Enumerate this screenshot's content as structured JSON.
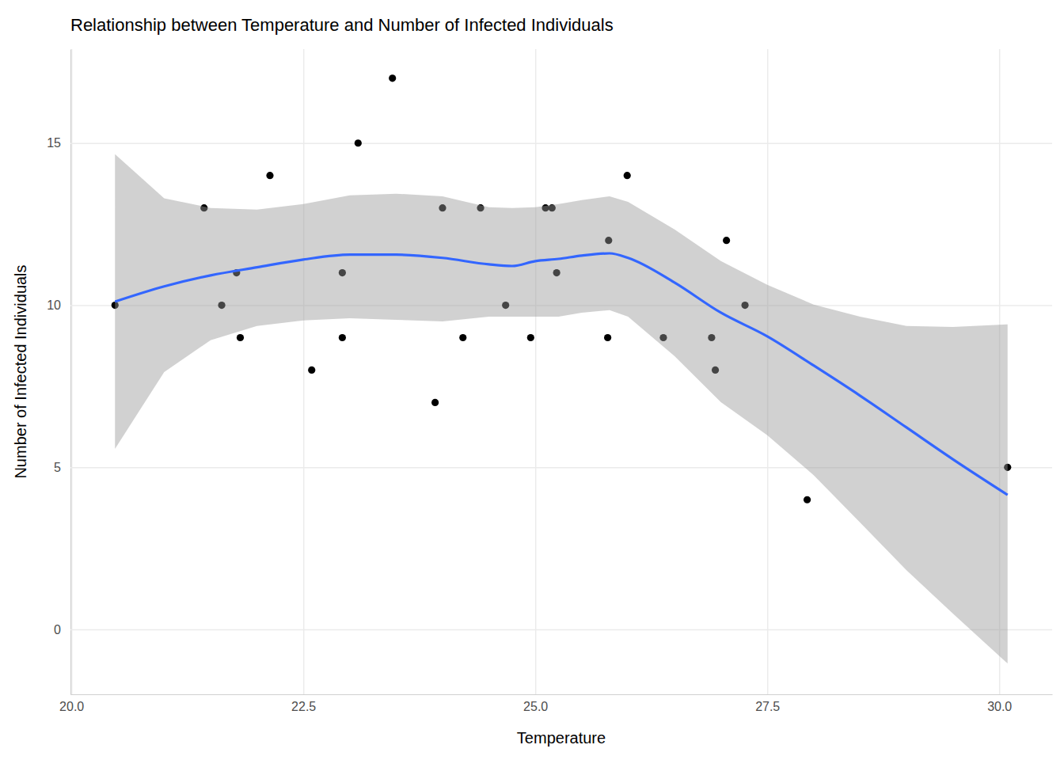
{
  "chart_data": {
    "type": "scatter",
    "title": "Relationship between Temperature and Number of Infected Individuals",
    "x_label": "Temperature",
    "y_label": "Number of Infected Individuals",
    "xlim": [
      19.99,
      30.57
    ],
    "ylim": [
      -2.0,
      17.9
    ],
    "xticks": [
      {
        "value": 20,
        "label": "20.0"
      },
      22.5,
      {
        "value": 25,
        "label": "25.0"
      },
      27.5,
      {
        "value": 30,
        "label": "30.0"
      }
    ],
    "yticks": [
      0,
      5,
      10,
      15
    ],
    "grid": true,
    "series": [
      {
        "type": "scatter",
        "color": "#000000",
        "marker": "circle",
        "x": [
          20.47,
          21.43,
          21.62,
          21.78,
          21.82,
          22.14,
          22.59,
          22.92,
          22.92,
          23.09,
          23.46,
          23.92,
          24.0,
          24.22,
          24.41,
          24.68,
          24.95,
          25.11,
          25.18,
          25.23,
          25.78,
          25.79,
          25.99,
          26.38,
          26.9,
          26.94,
          27.06,
          27.26,
          27.93,
          30.09
        ],
        "values": [
          10,
          13,
          10,
          11,
          9,
          14,
          8,
          11,
          9,
          15,
          17,
          7,
          13,
          9,
          13,
          10,
          9,
          13,
          13,
          11,
          9,
          12,
          14,
          9,
          9,
          8,
          12,
          10,
          4,
          5
        ]
      },
      {
        "type": "line",
        "color": "#3366FF",
        "line_style": "solid",
        "x": [
          20.47,
          21.0,
          21.5,
          22.0,
          22.5,
          23.0,
          23.5,
          24.0,
          24.5,
          24.75,
          25.0,
          25.25,
          25.5,
          25.8,
          26.0,
          26.5,
          27.0,
          27.5,
          28.0,
          28.5,
          29.0,
          29.5,
          30.09
        ],
        "values": [
          10.11,
          10.58,
          10.92,
          11.17,
          11.41,
          11.56,
          11.56,
          11.46,
          11.26,
          11.21,
          11.36,
          11.43,
          11.53,
          11.6,
          11.46,
          10.7,
          9.77,
          9.04,
          8.14,
          7.21,
          6.23,
          5.25,
          4.15
        ],
        "lower": [
          5.57,
          7.94,
          8.92,
          9.36,
          9.53,
          9.6,
          9.55,
          9.5,
          9.65,
          9.65,
          9.65,
          9.65,
          9.77,
          9.85,
          9.65,
          8.43,
          7.01,
          5.99,
          4.76,
          3.3,
          1.83,
          0.49,
          -1.05
        ],
        "upper": [
          14.66,
          13.3,
          13.0,
          12.95,
          13.12,
          13.39,
          13.44,
          13.36,
          13.02,
          13.0,
          13.02,
          13.12,
          13.24,
          13.36,
          13.19,
          12.34,
          11.36,
          10.63,
          10.02,
          9.65,
          9.36,
          9.33,
          9.41
        ]
      }
    ]
  }
}
